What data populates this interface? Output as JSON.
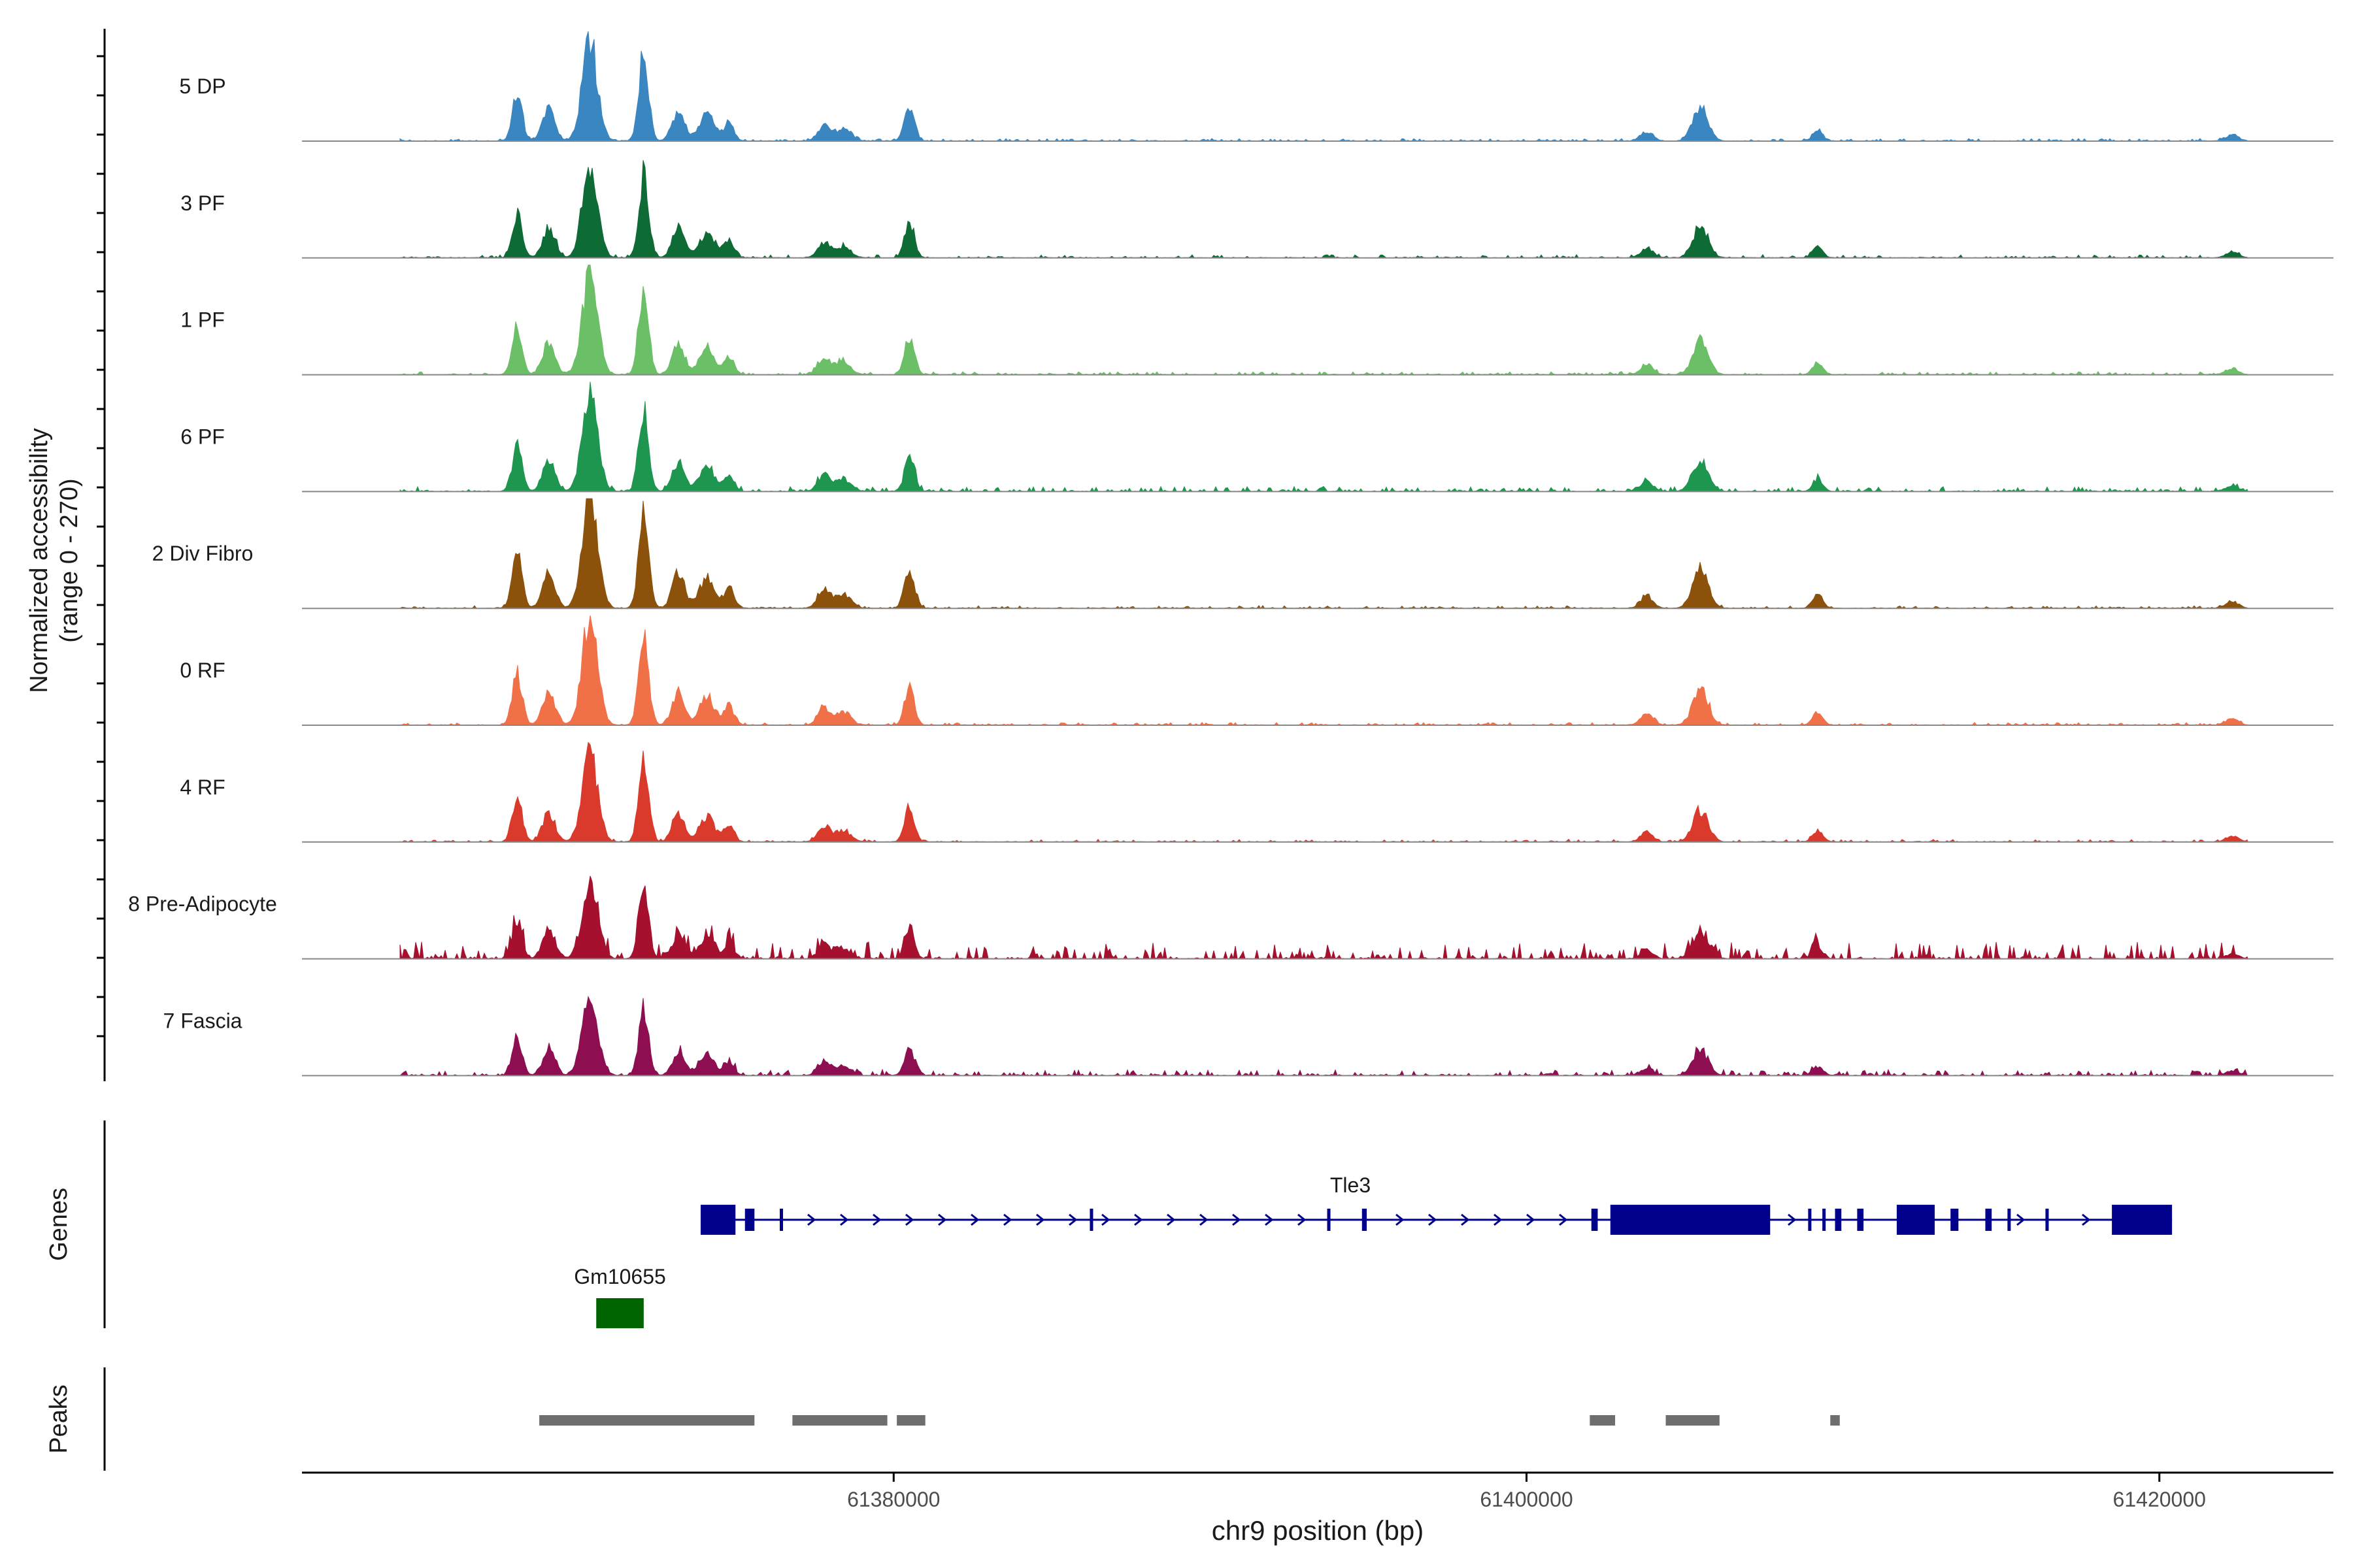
{
  "chart_data": {
    "type": "area",
    "title": "",
    "ylabel_line1": "Normalized accessibility",
    "ylabel_line2": "(range 0 - 270)",
    "xlabel": "chr9 position (bp)",
    "y_range": [
      0,
      270
    ],
    "x_range": [
      61361300,
      61425500
    ],
    "x_ticks": [
      61380000,
      61400000,
      61420000
    ],
    "x_tick_labels": [
      "61380000",
      "61400000",
      "61420000"
    ],
    "tracks": [
      {
        "name": "5 DP",
        "color": "#3A86C0",
        "scale": 1.0,
        "noise": 0.05
      },
      {
        "name": "3 PF",
        "color": "#0F6B36",
        "scale": 0.96,
        "noise": 0.06
      },
      {
        "name": "1 PF",
        "color": "#6BBF66",
        "scale": 1.02,
        "noise": 0.06
      },
      {
        "name": "6 PF",
        "color": "#1E9650",
        "scale": 0.97,
        "noise": 0.1
      },
      {
        "name": "2 Div Fibro",
        "color": "#8C510A",
        "scale": 1.18,
        "noise": 0.05
      },
      {
        "name": "0 RF",
        "color": "#F07048",
        "scale": 1.08,
        "noise": 0.05
      },
      {
        "name": "4 RF",
        "color": "#D93A2B",
        "scale": 0.96,
        "noise": 0.05
      },
      {
        "name": "8 Pre-Adipocyte",
        "color": "#A5102E",
        "scale": 0.85,
        "noise": 0.35
      },
      {
        "name": "7 Fascia",
        "color": "#8E0E52",
        "scale": 0.78,
        "noise": 0.12
      }
    ],
    "signal_peaks": [
      {
        "pos": 61368100,
        "height": 0.48
      },
      {
        "pos": 61369100,
        "height": 0.32
      },
      {
        "pos": 61370400,
        "height": 1.0
      },
      {
        "pos": 61372100,
        "height": 0.88
      },
      {
        "pos": 61373200,
        "height": 0.3
      },
      {
        "pos": 61374100,
        "height": 0.26
      },
      {
        "pos": 61374800,
        "height": 0.18
      },
      {
        "pos": 61377800,
        "height": 0.16
      },
      {
        "pos": 61378400,
        "height": 0.12
      },
      {
        "pos": 61380500,
        "height": 0.36
      },
      {
        "pos": 61403800,
        "height": 0.1
      },
      {
        "pos": 61405500,
        "height": 0.34
      },
      {
        "pos": 61409200,
        "height": 0.12
      },
      {
        "pos": 61422300,
        "height": 0.06
      }
    ],
    "genes": {
      "label": "Genes",
      "color": "#00008B",
      "items": [
        {
          "name": "Tle3",
          "strand": "+",
          "start": 61373900,
          "end": 61420400,
          "exons": [
            [
              61373900,
              61375000
            ],
            [
              61375300,
              61375600
            ],
            [
              61376400,
              61376500
            ],
            [
              61386200,
              61386300
            ],
            [
              61393700,
              61393800
            ],
            [
              61394800,
              61394950
            ],
            [
              61402050,
              61402250
            ],
            [
              61402650,
              61407700
            ],
            [
              61408900,
              61409000
            ],
            [
              61409350,
              61409450
            ],
            [
              61409750,
              61409950
            ],
            [
              61410450,
              61410650
            ],
            [
              61411700,
              61412900
            ],
            [
              61413400,
              61413650
            ],
            [
              61414500,
              61414700
            ],
            [
              61415200,
              61415300
            ],
            [
              61416400,
              61416500
            ],
            [
              61418500,
              61420400
            ]
          ]
        },
        {
          "name": "Gm10655",
          "strand": "+",
          "start": 61370600,
          "end": 61372100,
          "color": "#006400",
          "exons": [
            [
              61370600,
              61372100
            ]
          ]
        }
      ]
    },
    "peaks": {
      "label": "Peaks",
      "color": "#6E6E6E",
      "regions": [
        [
          61368800,
          61375600
        ],
        [
          61376800,
          61379800
        ],
        [
          61380100,
          61381000
        ],
        [
          61402000,
          61402800
        ],
        [
          61404400,
          61406100
        ],
        [
          61409600,
          61409900
        ]
      ]
    }
  }
}
